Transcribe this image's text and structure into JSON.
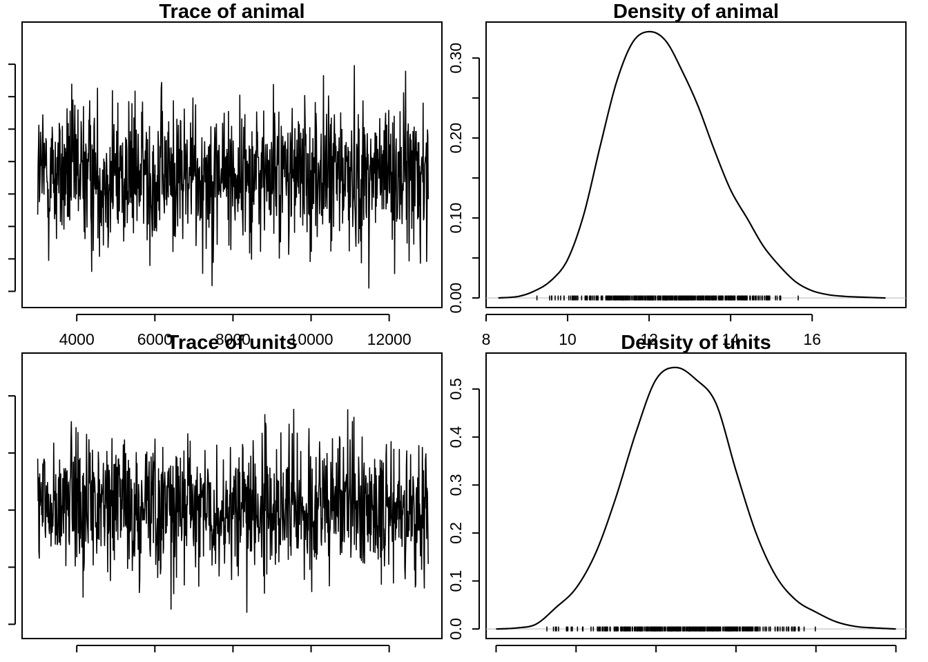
{
  "chart_data": [
    {
      "id": "trace-animal",
      "type": "line",
      "title": "Trace of animal",
      "xlabel": "",
      "ylabel": "",
      "x_range": [
        3000,
        13000
      ],
      "xlim": [
        2600,
        13350
      ],
      "ylim": [
        8.0,
        16.8
      ],
      "x_ticks": [
        4000,
        6000,
        8000,
        10000,
        12000
      ],
      "x_tick_labels": [
        "4000",
        "6000",
        "8000",
        "10000",
        "12000"
      ],
      "y_ticks": [
        8.5,
        9.5,
        10.5,
        11.5,
        12.5,
        13.5,
        14.5,
        15.5
      ],
      "y_tick_labels": [],
      "series": [
        {
          "mean": 12.1,
          "sd": 1.15,
          "min": 8.6,
          "max": 16.1,
          "n_points": 1000
        }
      ]
    },
    {
      "id": "density-animal",
      "type": "line",
      "title": "Density of animal",
      "xlabel": "",
      "ylabel": "",
      "xlim": [
        8.0,
        18.3
      ],
      "ylim": [
        -0.012,
        0.345
      ],
      "x_ticks": [
        8,
        10,
        12,
        14,
        16
      ],
      "x_tick_labels": [
        "8",
        "10",
        "12",
        "14",
        "16"
      ],
      "y_ticks": [
        0.0,
        0.05,
        0.1,
        0.15,
        0.2,
        0.25,
        0.3
      ],
      "y_tick_labels": [
        "0.00",
        "",
        "0.10",
        "",
        "0.20",
        "",
        "0.30"
      ],
      "series": [
        {
          "x": [
            8.3,
            8.8,
            9.2,
            9.6,
            10.0,
            10.4,
            10.8,
            11.2,
            11.6,
            12.0,
            12.4,
            12.8,
            13.2,
            13.6,
            14.0,
            14.4,
            14.8,
            15.2,
            15.6,
            16.0,
            16.4,
            16.8,
            17.2,
            17.8
          ],
          "y": [
            0.0,
            0.002,
            0.009,
            0.022,
            0.048,
            0.105,
            0.19,
            0.27,
            0.32,
            0.333,
            0.322,
            0.285,
            0.24,
            0.185,
            0.135,
            0.1,
            0.065,
            0.04,
            0.02,
            0.009,
            0.004,
            0.002,
            0.001,
            0.0
          ]
        }
      ],
      "rug": {
        "min": 9.2,
        "max": 15.9
      }
    },
    {
      "id": "trace-units",
      "type": "line",
      "title": "Trace of units",
      "xlabel": "",
      "ylabel": "",
      "x_range": [
        3000,
        13000
      ],
      "xlim": [
        2600,
        13350
      ],
      "ylim": [
        0.0,
        1.0
      ],
      "x_ticks": [
        4000,
        6000,
        8000,
        10000,
        12000
      ],
      "x_tick_labels": [],
      "y_ticks": [
        0.05,
        0.25,
        0.45,
        0.65,
        0.85
      ],
      "y_tick_labels": [],
      "series": [
        {
          "mean": 0.46,
          "sd": 0.12,
          "min": 0.04,
          "max": 0.93,
          "n_points": 1000
        }
      ]
    },
    {
      "id": "density-units",
      "type": "line",
      "title": "Density of units",
      "xlabel": "",
      "ylabel": "",
      "xlim": [
        -0.05,
        2.05
      ],
      "ylim": [
        -0.02,
        0.575
      ],
      "x_ticks": [
        0.0,
        0.4,
        0.8,
        1.2,
        1.6,
        2.0
      ],
      "x_tick_labels": [],
      "y_ticks": [
        0.0,
        0.1,
        0.2,
        0.3,
        0.4,
        0.5
      ],
      "y_tick_labels": [
        "0.0",
        "0.1",
        "0.2",
        "0.3",
        "0.4",
        "0.5"
      ],
      "series": [
        {
          "x": [
            0.0,
            0.1,
            0.2,
            0.3,
            0.4,
            0.5,
            0.6,
            0.7,
            0.8,
            0.9,
            1.0,
            1.1,
            1.2,
            1.3,
            1.4,
            1.5,
            1.6,
            1.7,
            1.8,
            1.9,
            2.0
          ],
          "y": [
            0.0,
            0.002,
            0.01,
            0.045,
            0.085,
            0.16,
            0.275,
            0.41,
            0.52,
            0.545,
            0.52,
            0.47,
            0.33,
            0.2,
            0.11,
            0.06,
            0.035,
            0.015,
            0.005,
            0.002,
            0.0
          ]
        }
      ],
      "rug": {
        "min": 0.25,
        "max": 1.65
      }
    }
  ]
}
